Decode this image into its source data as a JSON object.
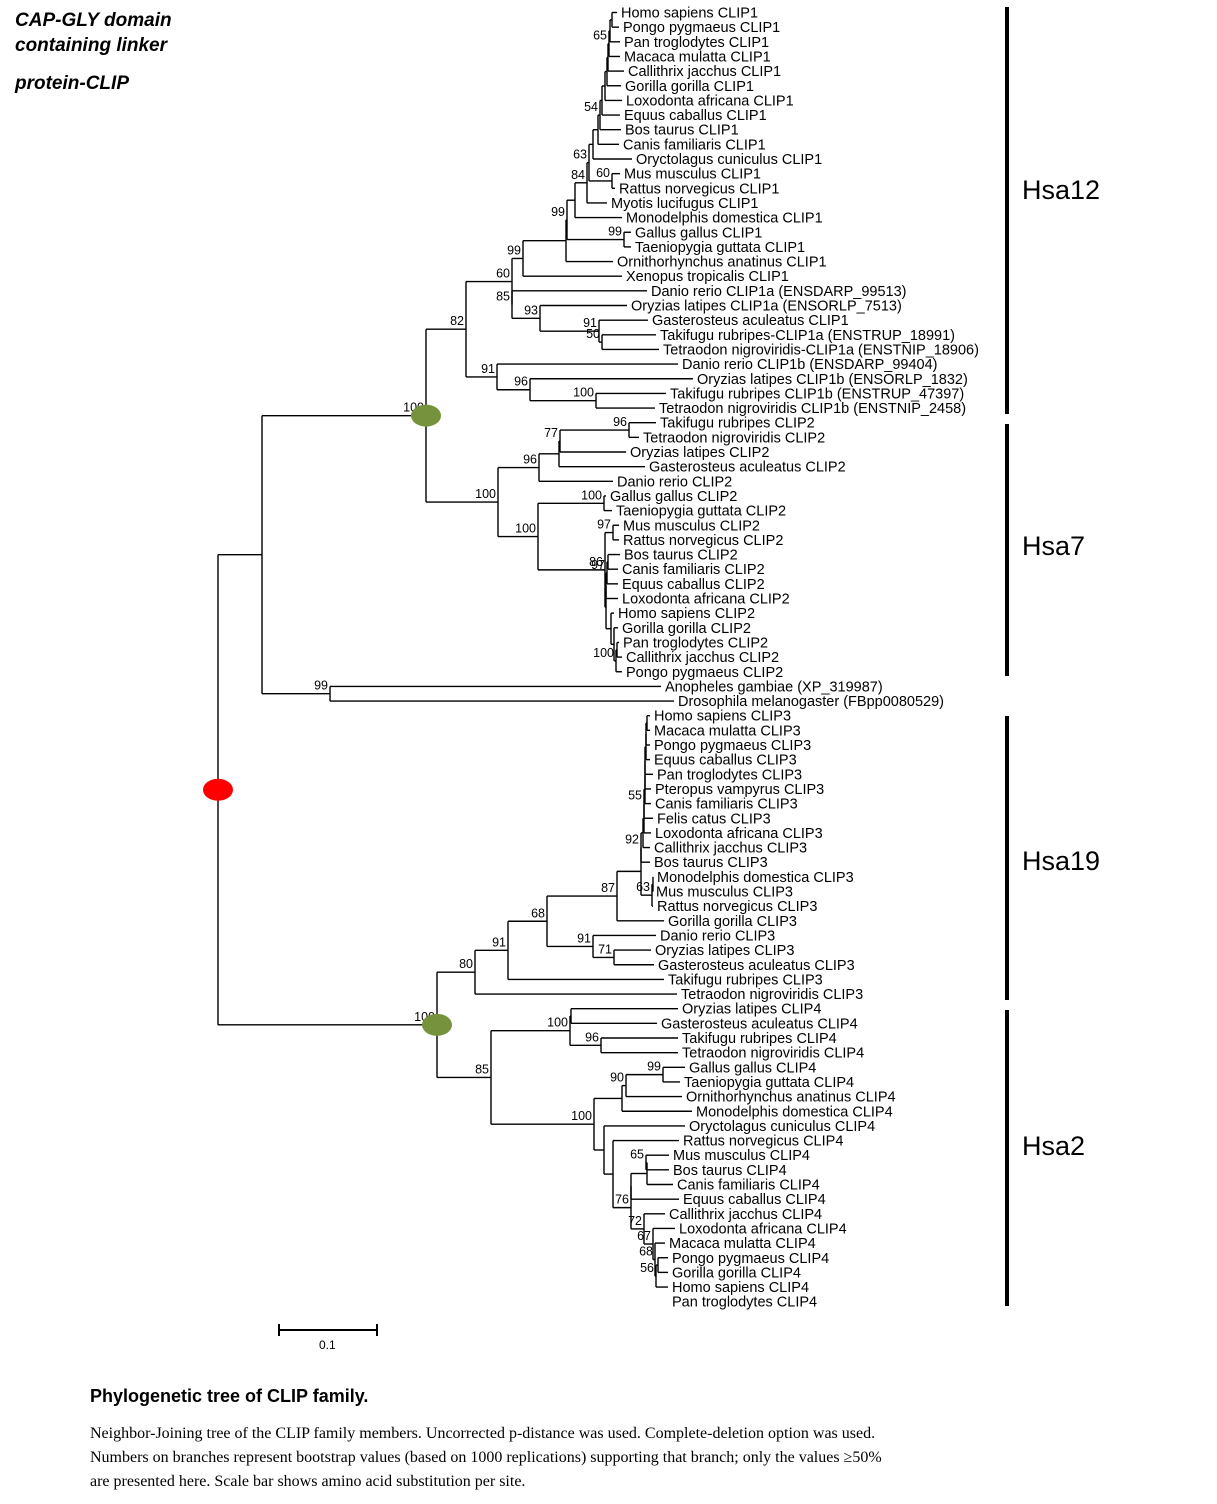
{
  "figure": {
    "title_lines": [
      "CAP-GLY domain",
      "containing linker",
      "protein-CLIP"
    ],
    "caption_title": "Phylogenetic tree of CLIP family.",
    "caption_lines": [
      "Neighbor-Joining tree of the CLIP family members. Uncorrected p-distance was used. Complete-deletion option was used.",
      "Numbers on branches represent bootstrap values (based on 1000 replications) supporting that branch; only the values ≥50%",
      "are presented here. Scale bar shows amino acid substitution per site."
    ],
    "scale_bar_label": "0.1"
  },
  "clades": [
    {
      "label": "Hsa12"
    },
    {
      "label": "Hsa7"
    },
    {
      "label": "Hsa19"
    },
    {
      "label": "Hsa2"
    }
  ],
  "leaves": [
    "Homo sapiens CLIP1",
    "Pongo pygmaeus CLIP1",
    "Pan troglodytes CLIP1",
    "Macaca mulatta CLIP1",
    "Callithrix jacchus CLIP1",
    "Gorilla gorilla CLIP1",
    "Loxodonta africana CLIP1",
    "Equus caballus CLIP1",
    "Bos taurus CLIP1",
    "Canis familiaris CLIP1",
    "Oryctolagus cuniculus CLIP1",
    "Mus musculus CLIP1",
    "Rattus norvegicus CLIP1",
    "Myotis lucifugus CLIP1",
    "Monodelphis domestica CLIP1",
    "Gallus gallus CLIP1",
    "Taeniopygia guttata CLIP1",
    "Ornithorhynchus anatinus CLIP1",
    "Xenopus tropicalis CLIP1",
    "Danio rerio CLIP1a (ENSDARP_99513)",
    "Oryzias latipes CLIP1a (ENSORLP_7513)",
    "Gasterosteus aculeatus CLIP1",
    "Takifugu rubripes-CLIP1a (ENSTRUP_18991)",
    "Tetraodon nigroviridis-CLIP1a (ENSTNIP_18906)",
    "Danio rerio CLIP1b (ENSDARP_99404)",
    "Oryzias latipes CLIP1b (ENSORLP_1832)",
    "Takifugu rubripes CLIP1b (ENSTRUP_47397)",
    "Tetraodon nigroviridis CLIP1b (ENSTNIP_2458)",
    "Takifugu rubripes CLIP2",
    "Tetraodon nigroviridis CLIP2",
    "Oryzias latipes CLIP2",
    "Gasterosteus aculeatus CLIP2",
    "Danio rerio CLIP2",
    "Gallus gallus CLIP2",
    "Taeniopygia guttata CLIP2",
    "Mus musculus CLIP2",
    "Rattus norvegicus CLIP2",
    "Bos taurus CLIP2",
    "Canis familiaris CLIP2",
    "Equus caballus CLIP2",
    "Loxodonta africana CLIP2",
    "Homo sapiens CLIP2",
    "Gorilla gorilla CLIP2",
    "Pan troglodytes CLIP2",
    "Callithrix jacchus CLIP2",
    "Pongo pygmaeus CLIP2",
    "Anopheles gambiae (XP_319987)",
    "Drosophila melanogaster (FBpp0080529)",
    "Homo sapiens CLIP3",
    "Macaca mulatta CLIP3",
    "Pongo pygmaeus CLIP3",
    "Equus caballus CLIP3",
    "Pan troglodytes CLIP3",
    "Pteropus vampyrus CLIP3",
    "Canis familiaris CLIP3",
    "Felis catus CLIP3",
    "Loxodonta africana CLIP3",
    "Callithrix jacchus CLIP3",
    "Bos taurus CLIP3",
    "Monodelphis domestica CLIP3",
    "Mus musculus CLIP3",
    "Rattus norvegicus CLIP3",
    "Gorilla gorilla CLIP3",
    "Danio rerio CLIP3",
    "Oryzias latipes CLIP3",
    "Gasterosteus aculeatus CLIP3",
    "Takifugu rubripes CLIP3",
    "Tetraodon nigroviridis CLIP3",
    "Oryzias latipes CLIP4",
    "Gasterosteus aculeatus CLIP4",
    "Takifugu rubripes CLIP4",
    "Tetraodon nigroviridis CLIP4",
    "Gallus gallus CLIP4",
    "Taeniopygia guttata CLIP4",
    "Ornithorhynchus anatinus CLIP4",
    "Monodelphis domestica CLIP4",
    "Oryctolagus cuniculus CLIP4",
    "Rattus norvegicus CLIP4",
    "Mus musculus CLIP4",
    "Bos taurus CLIP4",
    "Canis familiaris CLIP4",
    "Equus caballus CLIP4",
    "Callithrix jacchus CLIP4",
    "Loxodonta africana CLIP4",
    "Macaca mulatta CLIP4",
    "Pongo pygmaeus CLIP4",
    "Gorilla gorilla CLIP4",
    "Homo sapiens CLIP4",
    "Pan troglodytes CLIP4"
  ],
  "bootstrap_values": [
    "65",
    "54",
    "60",
    "63",
    "84",
    "99",
    "99",
    "60",
    "99",
    "82",
    "85",
    "93",
    "91",
    "50",
    "91",
    "96",
    "100",
    "100",
    "96",
    "77",
    "96",
    "100",
    "100",
    "97",
    "97",
    "86",
    "100",
    "53",
    "99",
    "55",
    "92",
    "63",
    "100",
    "87",
    "68",
    "71",
    "91",
    "91",
    "80",
    "100",
    "100",
    "96",
    "99",
    "90",
    "85",
    "100",
    "65",
    "76",
    "72",
    "67",
    "68",
    "56"
  ],
  "colors": {
    "duplication_node": "#76923c",
    "root_node": "#ff0000"
  }
}
